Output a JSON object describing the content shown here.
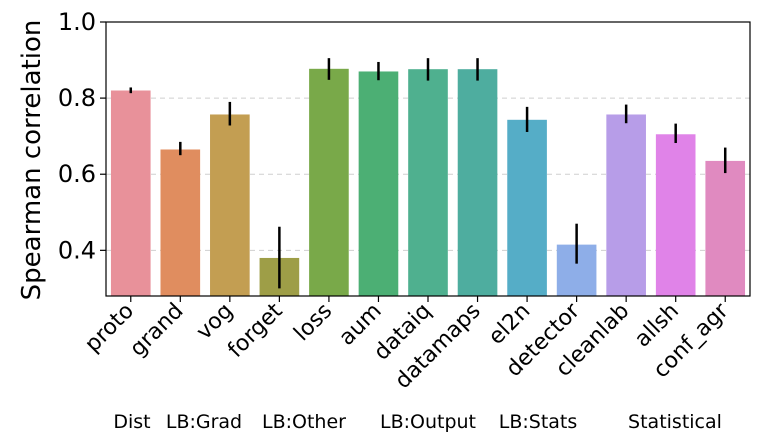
{
  "chart_data": {
    "type": "bar",
    "title": "",
    "xlabel": "",
    "ylabel": "Spearman correlation",
    "ylim": [
      0.28,
      1.0
    ],
    "yticks": [
      "0.4",
      "0.6",
      "0.8",
      "1.0"
    ],
    "ytick_values": [
      0.4,
      0.6,
      0.8,
      1.0
    ],
    "grid": "horizontal-dashed",
    "categories": [
      "proto",
      "grand",
      "vog",
      "forget",
      "loss",
      "aum",
      "dataiq",
      "datamaps",
      "el2n",
      "detector",
      "cleanlab",
      "allsh",
      "conf_agr"
    ],
    "values": [
      0.82,
      0.665,
      0.757,
      0.38,
      0.877,
      0.87,
      0.876,
      0.876,
      0.743,
      0.415,
      0.757,
      0.705,
      0.635
    ],
    "error_low": [
      0.813,
      0.65,
      0.728,
      0.3,
      0.848,
      0.847,
      0.846,
      0.846,
      0.711,
      0.365,
      0.734,
      0.682,
      0.603
    ],
    "error_high": [
      0.828,
      0.685,
      0.79,
      0.462,
      0.905,
      0.895,
      0.905,
      0.905,
      0.777,
      0.47,
      0.783,
      0.733,
      0.67
    ],
    "colors": [
      "#e8919a",
      "#e08d5f",
      "#c39e52",
      "#9e9e47",
      "#79a949",
      "#4caf74",
      "#4fb08f",
      "#4ead9f",
      "#55adc7",
      "#8eaee8",
      "#b79de8",
      "#e083e8",
      "#e08ac0"
    ],
    "groups": [
      "Dist",
      "LB:Grad",
      "LB:Other",
      "LB:Output",
      "LB:Stats",
      "Statistical"
    ]
  }
}
